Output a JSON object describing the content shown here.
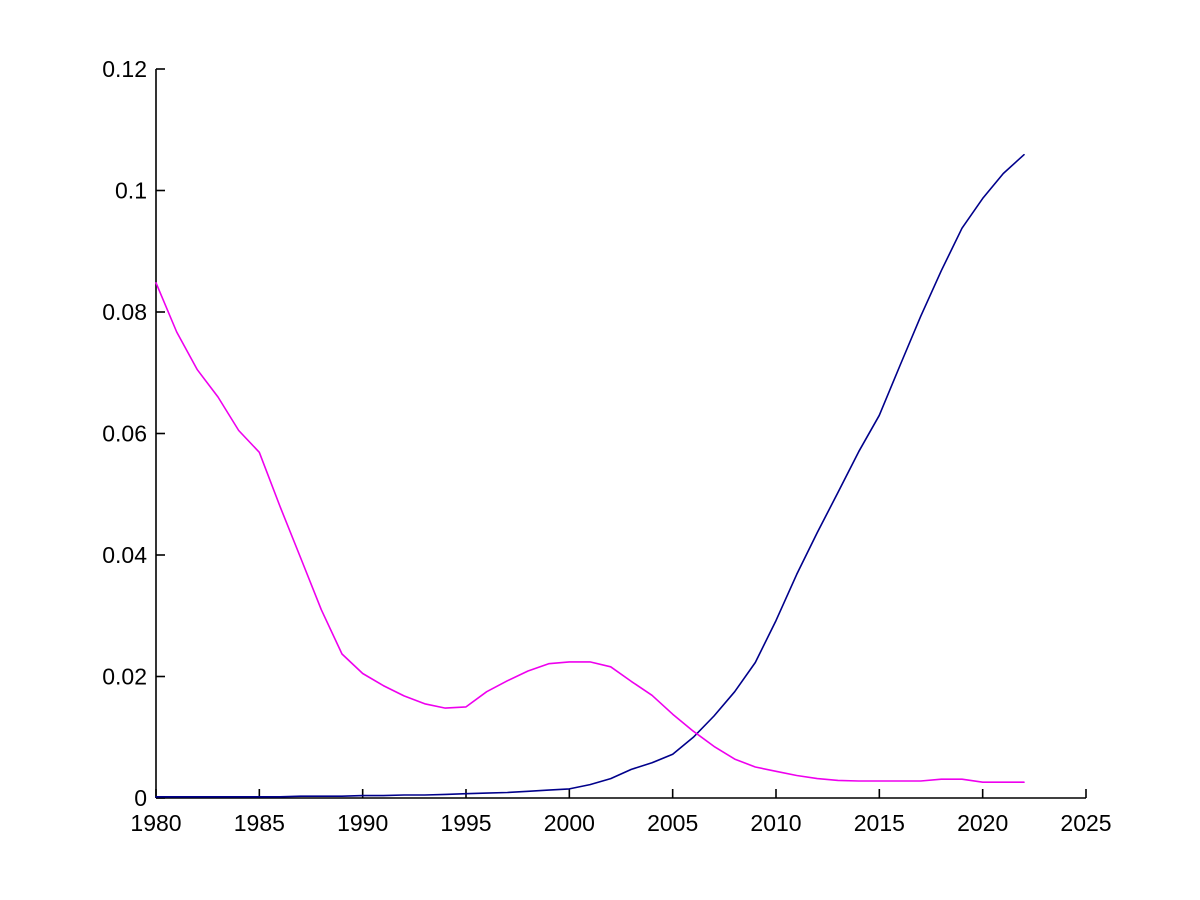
{
  "figure": {
    "background_color": "#FFFFFF",
    "axis_color": "#000000",
    "tick_label_color": "#000000"
  },
  "chart_data": {
    "type": "line",
    "title": "",
    "xlabel": "",
    "ylabel": "",
    "grid": false,
    "legend": null,
    "box": "off",
    "xlim": [
      1980,
      2025
    ],
    "ylim": [
      0,
      0.12
    ],
    "xticks": {
      "values": [
        1980,
        1985,
        1990,
        1995,
        2000,
        2005,
        2010,
        2015,
        2020,
        2025
      ],
      "labels": [
        "1980",
        "1985",
        "1990",
        "1995",
        "2000",
        "2005",
        "2010",
        "2015",
        "2020",
        "2025"
      ]
    },
    "yticks": {
      "values": [
        0,
        0.02,
        0.04,
        0.06,
        0.08,
        0.1,
        0.12
      ],
      "labels": [
        "0",
        "0.02",
        "0.04",
        "0.06",
        "0.08",
        "0.1",
        "0.12"
      ]
    },
    "x": [
      1980,
      1981,
      1982,
      1983,
      1984,
      1985,
      1986,
      1987,
      1988,
      1989,
      1990,
      1991,
      1992,
      1993,
      1994,
      1995,
      1996,
      1997,
      1998,
      1999,
      2000,
      2001,
      2002,
      2003,
      2004,
      2005,
      2006,
      2007,
      2008,
      2009,
      2010,
      2011,
      2012,
      2013,
      2014,
      2015,
      2016,
      2017,
      2018,
      2019,
      2020,
      2021,
      2022
    ],
    "series": [
      {
        "name": "navy-rising-line",
        "color": "#00008B",
        "values": [
          0.0002,
          0.0002,
          0.0002,
          0.0002,
          0.0002,
          0.0002,
          0.0002,
          0.0003,
          0.0003,
          0.0003,
          0.0004,
          0.0004,
          0.0005,
          0.0005,
          0.0006,
          0.0007,
          0.0008,
          0.0009,
          0.0011,
          0.0013,
          0.0015,
          0.0022,
          0.0032,
          0.0047,
          0.0058,
          0.0072,
          0.01,
          0.0135,
          0.0175,
          0.0223,
          0.0292,
          0.0368,
          0.0437,
          0.0503,
          0.057,
          0.063,
          0.0712,
          0.0793,
          0.0868,
          0.0938,
          0.0987,
          0.1028,
          0.1059
        ]
      },
      {
        "name": "magenta-declining-line",
        "color": "#EE00EE",
        "values": [
          0.0848,
          0.0767,
          0.0705,
          0.066,
          0.0605,
          0.0569,
          0.048,
          0.0395,
          0.031,
          0.0237,
          0.0205,
          0.0185,
          0.0168,
          0.0155,
          0.0148,
          0.015,
          0.0175,
          0.0193,
          0.0209,
          0.0221,
          0.0224,
          0.0224,
          0.0216,
          0.0192,
          0.0169,
          0.0138,
          0.011,
          0.0085,
          0.0064,
          0.0051,
          0.0044,
          0.0037,
          0.0032,
          0.0029,
          0.0028,
          0.0028,
          0.0028,
          0.0028,
          0.0031,
          0.0031,
          0.0026,
          0.0026,
          0.0026
        ]
      }
    ]
  }
}
